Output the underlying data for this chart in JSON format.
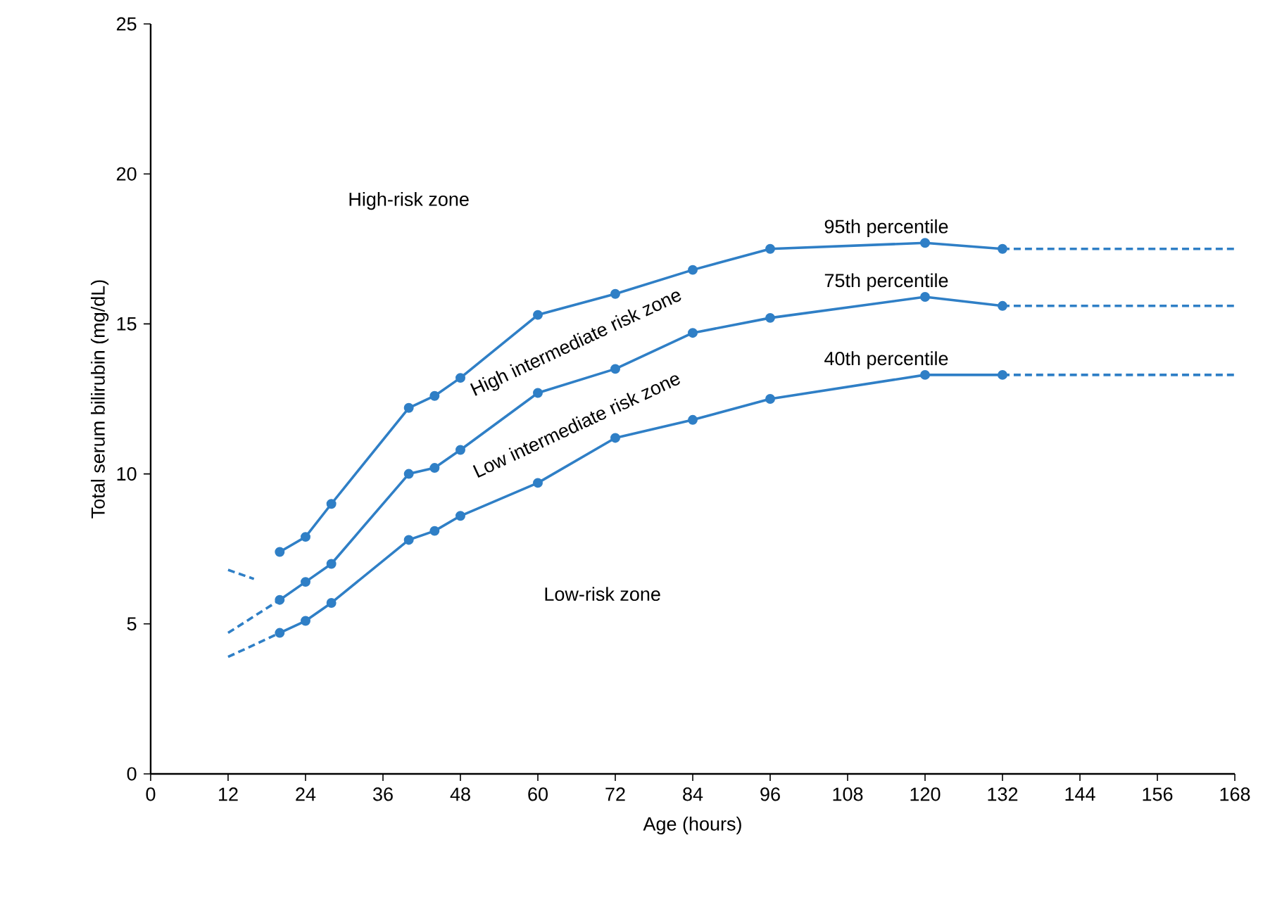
{
  "chart_data": {
    "type": "line",
    "xlabel": "Age (hours)",
    "ylabel": "Total serum bilirubin (mg/dL)",
    "xlim": [
      0,
      168
    ],
    "xticks": [
      0,
      12,
      24,
      36,
      48,
      60,
      72,
      84,
      96,
      108,
      120,
      132,
      144,
      156,
      168
    ],
    "ylim": [
      0,
      25
    ],
    "yticks": [
      0,
      5,
      10,
      15,
      20,
      25
    ],
    "grid": false,
    "legend": false,
    "series": [
      {
        "name": "95th percentile",
        "color": "#2f7fc6",
        "marker": "circle",
        "line_style": "solid",
        "x": [
          20,
          24,
          28,
          40,
          44,
          48,
          60,
          72,
          84,
          96,
          120,
          132
        ],
        "values": [
          7.4,
          7.9,
          9.0,
          12.2,
          12.6,
          13.2,
          15.3,
          16.0,
          16.8,
          17.5,
          17.7,
          17.5
        ]
      },
      {
        "name": "75th percentile",
        "color": "#2f7fc6",
        "marker": "circle",
        "line_style": "solid",
        "x": [
          20,
          24,
          28,
          40,
          44,
          48,
          60,
          72,
          84,
          96,
          120,
          132
        ],
        "values": [
          5.8,
          6.4,
          7.0,
          10.0,
          10.2,
          10.8,
          12.7,
          13.5,
          14.7,
          15.2,
          15.9,
          15.6
        ]
      },
      {
        "name": "40th percentile",
        "color": "#2f7fc6",
        "marker": "circle",
        "line_style": "solid",
        "x": [
          20,
          24,
          28,
          40,
          44,
          48,
          60,
          72,
          84,
          96,
          120,
          132
        ],
        "values": [
          4.7,
          5.1,
          5.7,
          7.8,
          8.1,
          8.6,
          9.7,
          11.2,
          11.8,
          12.5,
          13.3,
          13.3
        ]
      },
      {
        "color": "#2f7fc6",
        "marker": "none",
        "line_style": "dashed",
        "x": [
          12,
          16
        ],
        "values": [
          6.8,
          6.5
        ]
      },
      {
        "color": "#2f7fc6",
        "marker": "none",
        "line_style": "dashed",
        "x": [
          12,
          20
        ],
        "values": [
          4.7,
          5.8
        ]
      },
      {
        "color": "#2f7fc6",
        "marker": "none",
        "line_style": "dashed",
        "x": [
          12,
          20
        ],
        "values": [
          3.9,
          4.7
        ]
      },
      {
        "color": "#2f7fc6",
        "marker": "none",
        "line_style": "dashed",
        "x": [
          132,
          168
        ],
        "values": [
          17.5,
          17.5
        ]
      },
      {
        "color": "#2f7fc6",
        "marker": "none",
        "line_style": "dashed",
        "x": [
          132,
          168
        ],
        "values": [
          15.6,
          15.6
        ]
      },
      {
        "color": "#2f7fc6",
        "marker": "none",
        "line_style": "dashed",
        "x": [
          132,
          168
        ],
        "values": [
          13.3,
          13.3
        ]
      }
    ],
    "annotations": [
      "High-risk zone",
      "High intermediate risk zone",
      "Low intermediate risk zone",
      "Low-risk zone"
    ]
  }
}
